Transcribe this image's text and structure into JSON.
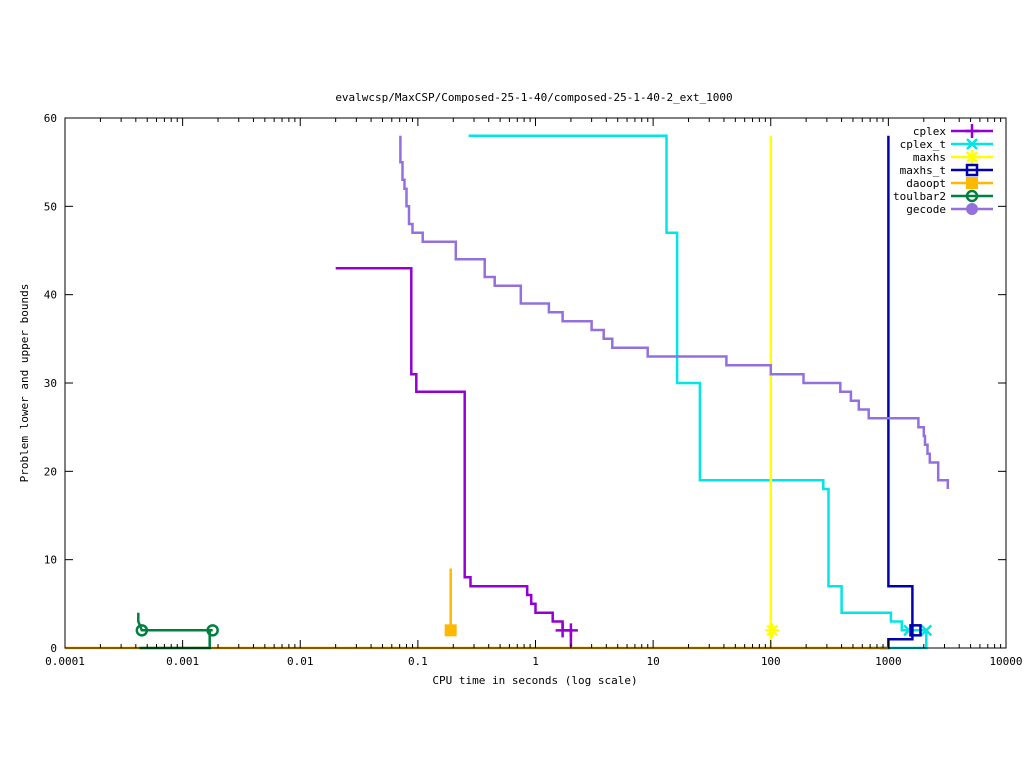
{
  "chart_data": {
    "type": "line",
    "title": "evalwcsp/MaxCSP/Composed-25-1-40/composed-25-1-40-2_ext_1000",
    "xlabel": "CPU time in seconds (log scale)",
    "ylabel": "Problem lower and upper bounds",
    "xscale": "log",
    "xlim": [
      0.0001,
      10000
    ],
    "ylim": [
      0,
      60
    ],
    "xticks": [
      0.0001,
      0.001,
      0.01,
      0.1,
      1,
      10,
      100,
      1000,
      10000
    ],
    "xtick_labels": [
      "0.0001",
      "0.001",
      "0.01",
      "0.1",
      "1",
      "10",
      "100",
      "1000",
      "10000"
    ],
    "yticks": [
      0,
      10,
      20,
      30,
      40,
      50,
      60
    ],
    "ytick_labels": [
      "0",
      "10",
      "20",
      "30",
      "40",
      "50",
      "60"
    ],
    "grid": false,
    "legend_position": "top-right",
    "series": [
      {
        "name": "cplex",
        "color": "#9400d3",
        "marker": "plus",
        "points": [
          [
            0.02,
            43
          ],
          [
            0.088,
            43
          ],
          [
            0.088,
            31
          ],
          [
            0.097,
            31
          ],
          [
            0.097,
            29
          ],
          [
            0.25,
            29
          ],
          [
            0.25,
            8
          ],
          [
            0.28,
            8
          ],
          [
            0.28,
            7
          ],
          [
            0.85,
            7
          ],
          [
            0.85,
            6
          ],
          [
            0.92,
            6
          ],
          [
            0.92,
            5
          ],
          [
            1.0,
            5
          ],
          [
            1.0,
            4
          ],
          [
            1.4,
            4
          ],
          [
            1.4,
            3
          ],
          [
            1.7,
            3
          ],
          [
            1.7,
            2
          ],
          [
            2.0,
            2
          ],
          [
            2.0,
            0
          ]
        ],
        "marker_points": [
          [
            1.7,
            2
          ],
          [
            2.0,
            2
          ]
        ]
      },
      {
        "name": "cplex_t",
        "color": "#00e5e5",
        "marker": "x",
        "points": [
          [
            0.27,
            58
          ],
          [
            13,
            58
          ],
          [
            13,
            47
          ],
          [
            16,
            47
          ],
          [
            16,
            30
          ],
          [
            25,
            30
          ],
          [
            25,
            19
          ],
          [
            280,
            19
          ],
          [
            280,
            18
          ],
          [
            310,
            18
          ],
          [
            310,
            7
          ],
          [
            400,
            7
          ],
          [
            400,
            4
          ],
          [
            1050,
            4
          ],
          [
            1050,
            3
          ],
          [
            1300,
            3
          ],
          [
            1300,
            2
          ],
          [
            2100,
            2
          ],
          [
            2100,
            0
          ],
          [
            680,
            0
          ]
        ],
        "marker_points": [
          [
            1500,
            2
          ],
          [
            2100,
            2
          ]
        ]
      },
      {
        "name": "maxhs",
        "color": "#ffff00",
        "marker": "star",
        "points": [
          [
            100,
            58
          ],
          [
            100,
            0
          ]
        ],
        "marker_points": [
          [
            103,
            2
          ]
        ]
      },
      {
        "name": "maxhs_t",
        "color": "#0000ad",
        "marker": "box",
        "points": [
          [
            1000,
            58
          ],
          [
            1000,
            7
          ],
          [
            1600,
            7
          ],
          [
            1600,
            2
          ],
          [
            1600,
            1
          ],
          [
            1000,
            1
          ],
          [
            1000,
            0
          ],
          [
            850,
            0
          ]
        ],
        "marker_points": [
          [
            1700,
            2
          ]
        ]
      },
      {
        "name": "daoopt",
        "color": "#ffb800",
        "marker": "filled-box",
        "points": [
          [
            0.0001,
            0
          ],
          [
            1000,
            0
          ]
        ],
        "vertical_line": [
          [
            0.19,
            9
          ],
          [
            0.19,
            2
          ]
        ],
        "marker_points": [
          [
            0.19,
            2
          ]
        ]
      },
      {
        "name": "toulbar2",
        "color": "#007f3f",
        "marker": "circle",
        "points": [
          [
            0.00042,
            4
          ],
          [
            0.00042,
            3
          ],
          [
            0.00045,
            2
          ],
          [
            0.0018,
            2
          ],
          [
            0.0017,
            2
          ],
          [
            0.0017,
            0
          ],
          [
            0.00043,
            0
          ]
        ],
        "marker_points": [
          [
            0.00045,
            2
          ],
          [
            0.0018,
            2
          ]
        ]
      },
      {
        "name": "gecode",
        "color": "#9370db",
        "marker": "filled-circle",
        "points": [
          [
            0.071,
            58
          ],
          [
            0.071,
            55
          ],
          [
            0.074,
            55
          ],
          [
            0.074,
            53
          ],
          [
            0.077,
            53
          ],
          [
            0.077,
            52
          ],
          [
            0.08,
            52
          ],
          [
            0.08,
            50
          ],
          [
            0.084,
            50
          ],
          [
            0.084,
            48
          ],
          [
            0.09,
            48
          ],
          [
            0.09,
            47
          ],
          [
            0.11,
            47
          ],
          [
            0.11,
            46
          ],
          [
            0.21,
            46
          ],
          [
            0.21,
            44
          ],
          [
            0.37,
            44
          ],
          [
            0.37,
            42
          ],
          [
            0.45,
            42
          ],
          [
            0.45,
            41
          ],
          [
            0.75,
            41
          ],
          [
            0.75,
            39
          ],
          [
            1.3,
            39
          ],
          [
            1.3,
            38
          ],
          [
            1.7,
            38
          ],
          [
            1.7,
            37
          ],
          [
            3,
            37
          ],
          [
            3,
            36
          ],
          [
            3.8,
            36
          ],
          [
            3.8,
            35
          ],
          [
            4.5,
            35
          ],
          [
            4.5,
            34
          ],
          [
            9,
            34
          ],
          [
            9,
            33
          ],
          [
            42,
            33
          ],
          [
            42,
            32
          ],
          [
            100,
            32
          ],
          [
            100,
            31
          ],
          [
            190,
            31
          ],
          [
            190,
            30
          ],
          [
            390,
            30
          ],
          [
            390,
            29
          ],
          [
            480,
            29
          ],
          [
            480,
            28
          ],
          [
            560,
            28
          ],
          [
            560,
            27
          ],
          [
            680,
            27
          ],
          [
            680,
            26
          ],
          [
            1800,
            26
          ],
          [
            1800,
            25
          ],
          [
            2000,
            25
          ],
          [
            2000,
            24
          ],
          [
            2050,
            24
          ],
          [
            2050,
            23
          ],
          [
            2150,
            23
          ],
          [
            2150,
            22
          ],
          [
            2250,
            22
          ],
          [
            2250,
            21
          ],
          [
            2650,
            21
          ],
          [
            2650,
            19
          ],
          [
            3200,
            19
          ],
          [
            3200,
            18
          ]
        ],
        "marker_points": []
      }
    ]
  }
}
